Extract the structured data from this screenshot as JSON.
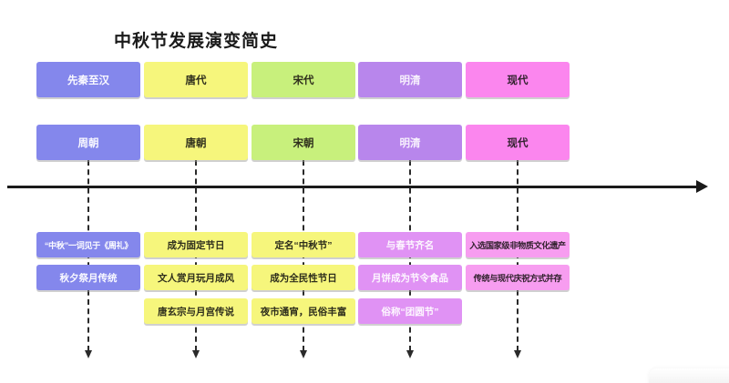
{
  "title": "中秋节发展演变简史",
  "timeline": {
    "direction": "left-to-right"
  },
  "colors": {
    "blue": "#8487ec",
    "yellow": "#f6f67c",
    "green": "#c8f07c",
    "purple": "#b886ec",
    "magenta": "#fb86ee",
    "lilac": "#e092f4",
    "pink_light": "#f79df0",
    "axis": "#1a1a1a"
  },
  "columns": [
    {
      "period": "先秦至汉",
      "dynasty": "周朝",
      "details": [
        "“中秋”一词见于《周礼》",
        "秋夕祭月传统"
      ]
    },
    {
      "period": "唐代",
      "dynasty": "唐朝",
      "details": [
        "成为固定节日",
        "文人赏月玩月成风",
        "唐玄宗与月宫传说"
      ]
    },
    {
      "period": "宋代",
      "dynasty": "宋朝",
      "details": [
        "定名“中秋节”",
        "成为全民性节日",
        "夜市通宵，民俗丰富"
      ]
    },
    {
      "period": "明清",
      "dynasty": "明清",
      "details": [
        "与春节齐名",
        "月饼成为节令食品",
        "俗称“团圆节”"
      ]
    },
    {
      "period": "现代",
      "dynasty": "现代",
      "details": [
        "入选国家级非物质文化遗产",
        "传统与现代庆祝方式并存"
      ]
    }
  ]
}
